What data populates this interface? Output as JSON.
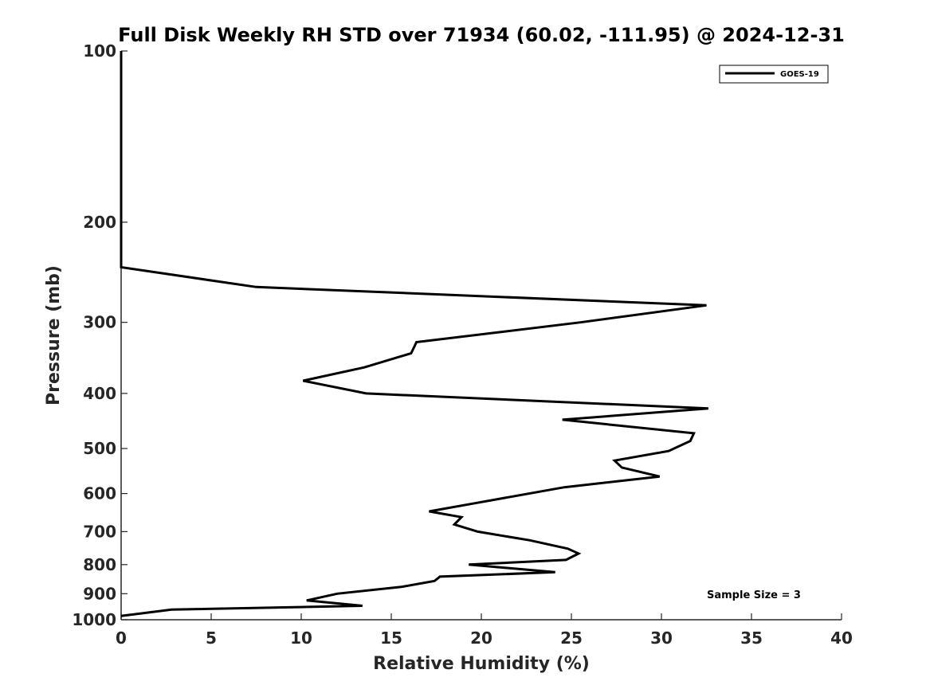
{
  "chart_data": {
    "type": "line",
    "title": "Full Disk Weekly RH STD over 71934 (60.02, -111.95) @ 2024-12-31",
    "xlabel": "Relative Humidity (%)",
    "ylabel": "Pressure (mb)",
    "xlim": [
      0,
      40
    ],
    "ylim": [
      1000,
      100
    ],
    "yscale": "log",
    "xticks": [
      0,
      5,
      10,
      15,
      20,
      25,
      30,
      35,
      40
    ],
    "yticks": [
      100,
      200,
      300,
      400,
      500,
      600,
      700,
      800,
      900,
      1000
    ],
    "grid": false,
    "legend_position": "top-right",
    "annotation": "Sample Size = 3",
    "series": [
      {
        "name": "GOES-19",
        "color": "#000000",
        "points": [
          {
            "x": 0,
            "p": 100
          },
          {
            "x": 0,
            "p": 150
          },
          {
            "x": 0,
            "p": 200
          },
          {
            "x": 0,
            "p": 240
          },
          {
            "x": 7.5,
            "p": 260
          },
          {
            "x": 32.5,
            "p": 280
          },
          {
            "x": 25.5,
            "p": 300
          },
          {
            "x": 16.4,
            "p": 325
          },
          {
            "x": 16.1,
            "p": 340
          },
          {
            "x": 13.5,
            "p": 360
          },
          {
            "x": 10.1,
            "p": 380
          },
          {
            "x": 13.6,
            "p": 400
          },
          {
            "x": 32.6,
            "p": 425
          },
          {
            "x": 24.5,
            "p": 445
          },
          {
            "x": 31.8,
            "p": 470
          },
          {
            "x": 31.6,
            "p": 485
          },
          {
            "x": 30.4,
            "p": 505
          },
          {
            "x": 27.4,
            "p": 525
          },
          {
            "x": 27.8,
            "p": 540
          },
          {
            "x": 29.9,
            "p": 560
          },
          {
            "x": 24.6,
            "p": 585
          },
          {
            "x": 19.5,
            "p": 625
          },
          {
            "x": 17.1,
            "p": 645
          },
          {
            "x": 18.9,
            "p": 660
          },
          {
            "x": 18.5,
            "p": 680
          },
          {
            "x": 19.8,
            "p": 700
          },
          {
            "x": 22.7,
            "p": 725
          },
          {
            "x": 24.8,
            "p": 750
          },
          {
            "x": 25.4,
            "p": 765
          },
          {
            "x": 24.7,
            "p": 785
          },
          {
            "x": 19.3,
            "p": 800
          },
          {
            "x": 24.1,
            "p": 825
          },
          {
            "x": 17.7,
            "p": 840
          },
          {
            "x": 17.4,
            "p": 855
          },
          {
            "x": 15.6,
            "p": 875
          },
          {
            "x": 12.0,
            "p": 900
          },
          {
            "x": 10.3,
            "p": 925
          },
          {
            "x": 13.4,
            "p": 945
          },
          {
            "x": 2.8,
            "p": 960
          },
          {
            "x": 0,
            "p": 985
          }
        ]
      }
    ]
  }
}
